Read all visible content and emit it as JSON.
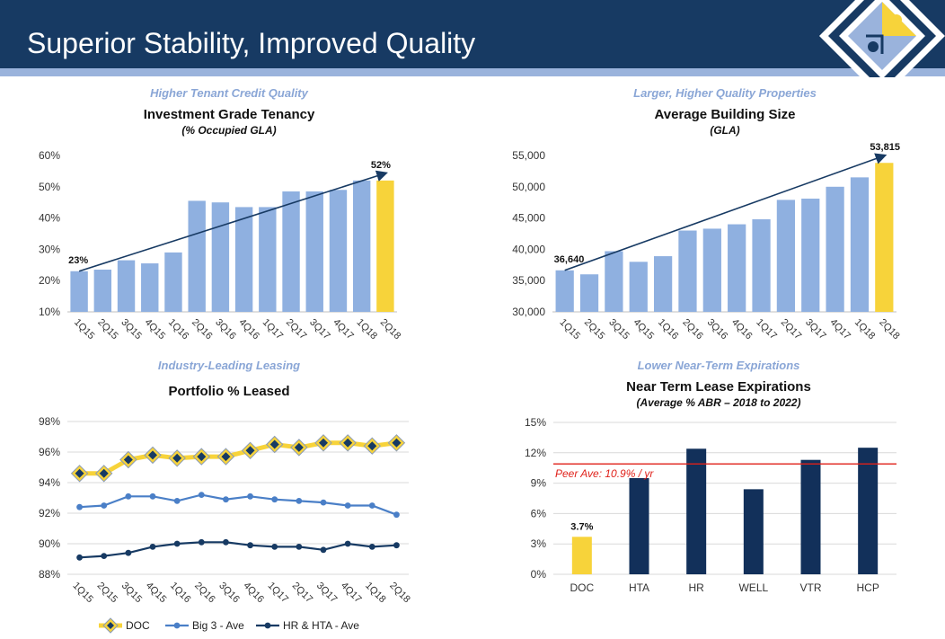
{
  "header": {
    "title": "Superior Stability, Improved Quality",
    "logo_icon": "puzzle-piece-icon"
  },
  "colors": {
    "navy": "#173a63",
    "light_blue_bar": "#8fb0e0",
    "highlight_yellow": "#f7d33a",
    "dark_bar": "#12305a",
    "line_blue": "#4a7fc7",
    "peer_line": "#e0211a",
    "category_italic": "#8aa6d6"
  },
  "chart_data": [
    {
      "type": "bar",
      "category_label": "Higher Tenant Credit Quality",
      "title": "Investment Grade Tenancy",
      "subtitle": "(% Occupied GLA)",
      "categories": [
        "1Q15",
        "2Q15",
        "3Q15",
        "4Q15",
        "1Q16",
        "2Q16",
        "3Q16",
        "4Q16",
        "1Q17",
        "2Q17",
        "3Q17",
        "4Q17",
        "1Q18",
        "2Q18"
      ],
      "values": [
        23,
        23.5,
        26.5,
        25.5,
        29,
        45.5,
        45,
        43.5,
        43.5,
        48.5,
        48.5,
        49,
        52,
        52
      ],
      "highlight_index": 13,
      "ylim": [
        10,
        60
      ],
      "yticks": [
        "10%",
        "20%",
        "30%",
        "40%",
        "50%",
        "60%"
      ],
      "annotations": {
        "start": "23%",
        "end": "52%"
      },
      "trend_arrow": true
    },
    {
      "type": "bar",
      "category_label": "Larger, Higher Quality Properties",
      "title": "Average Building Size",
      "subtitle": "(GLA)",
      "categories": [
        "1Q15",
        "2Q15",
        "3Q15",
        "4Q15",
        "1Q16",
        "2Q16",
        "3Q16",
        "4Q16",
        "1Q17",
        "2Q17",
        "3Q17",
        "4Q17",
        "1Q18",
        "2Q18"
      ],
      "values": [
        36640,
        36000,
        39700,
        38000,
        38900,
        43000,
        43300,
        44000,
        44800,
        47900,
        48100,
        50000,
        51500,
        53815
      ],
      "highlight_index": 13,
      "ylim": [
        30000,
        55000
      ],
      "yticks": [
        "30,000",
        "35,000",
        "40,000",
        "45,000",
        "50,000",
        "55,000"
      ],
      "annotations": {
        "start": "36,640",
        "end": "53,815"
      },
      "trend_arrow": true
    },
    {
      "type": "line",
      "category_label": "Industry-Leading Leasing",
      "title": "Portfolio % Leased",
      "categories": [
        "1Q15",
        "2Q15",
        "3Q15",
        "4Q15",
        "1Q16",
        "2Q16",
        "3Q16",
        "4Q16",
        "1Q17",
        "2Q17",
        "3Q17",
        "4Q17",
        "1Q18",
        "2Q18"
      ],
      "series": [
        {
          "name": "DOC",
          "values": [
            94.6,
            94.6,
            95.5,
            95.8,
            95.6,
            95.7,
            95.7,
            96.1,
            96.5,
            96.3,
            96.6,
            96.6,
            96.4,
            96.6
          ]
        },
        {
          "name": "Big 3 - Ave",
          "values": [
            92.4,
            92.5,
            93.1,
            93.1,
            92.8,
            93.2,
            92.9,
            93.1,
            92.9,
            92.8,
            92.7,
            92.5,
            92.5,
            91.9
          ]
        },
        {
          "name": "HR & HTA - Ave",
          "values": [
            89.1,
            89.2,
            89.4,
            89.8,
            90.0,
            90.1,
            90.1,
            89.9,
            89.8,
            89.8,
            89.6,
            90.0,
            89.8,
            89.9
          ]
        }
      ],
      "ylim": [
        88,
        98
      ],
      "yticks": [
        "88%",
        "90%",
        "92%",
        "94%",
        "96%",
        "98%"
      ],
      "legend": [
        "DOC",
        "Big 3 - Ave",
        "HR & HTA - Ave"
      ]
    },
    {
      "type": "bar",
      "category_label": "Lower Near-Term Expirations",
      "title": "Near Term Lease Expirations",
      "subtitle": "(Average % ABR – 2018 to 2022)",
      "categories": [
        "DOC",
        "HTA",
        "HR",
        "WELL",
        "VTR",
        "HCP"
      ],
      "values": [
        3.7,
        9.5,
        12.4,
        8.4,
        11.3,
        12.5
      ],
      "highlight_index": 0,
      "ylim": [
        0,
        15
      ],
      "yticks": [
        "0%",
        "3%",
        "6%",
        "9%",
        "12%",
        "15%"
      ],
      "data_label": "3.7%",
      "reference_line": {
        "value": 10.9,
        "label": "Peer Ave: 10.9%  / yr"
      }
    }
  ]
}
